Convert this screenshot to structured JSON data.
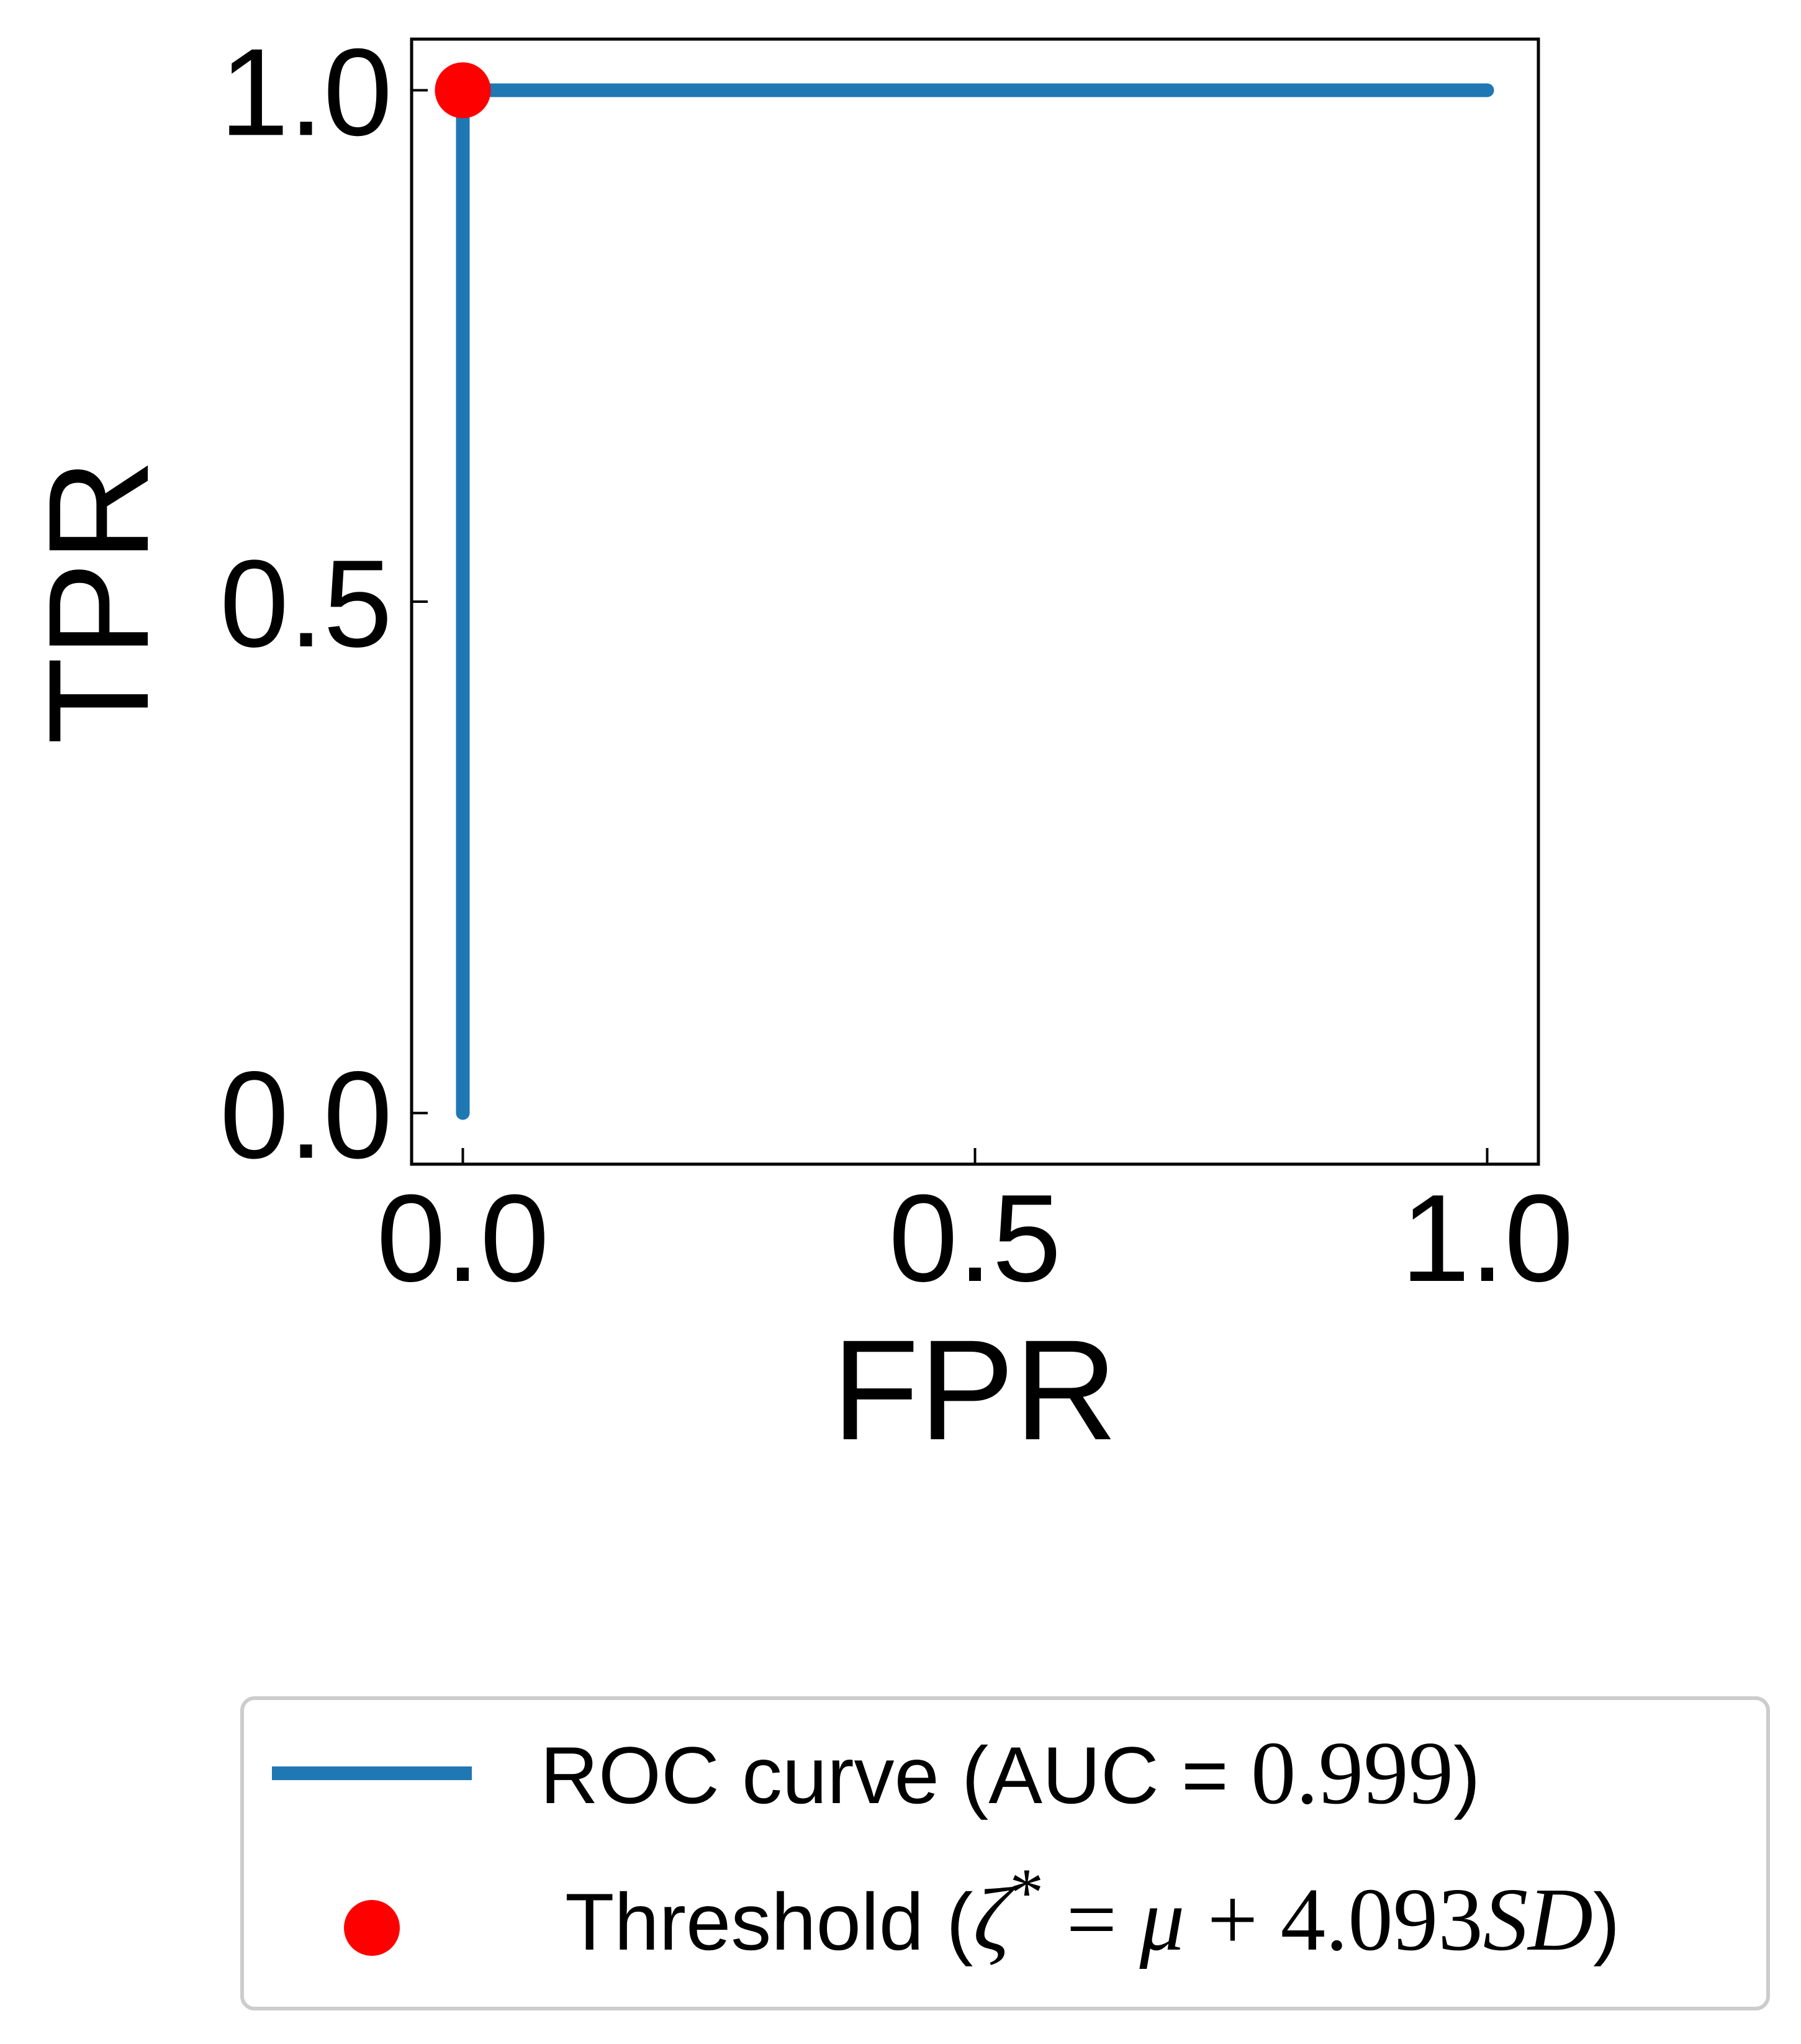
{
  "chart_data": {
    "type": "line",
    "xlabel": "FPR",
    "ylabel": "TPR",
    "xlim": [
      -0.05,
      1.05
    ],
    "ylim": [
      -0.05,
      1.05
    ],
    "xticks": [
      "0.0",
      "0.5",
      "1.0"
    ],
    "yticks": [
      "0.0",
      "0.5",
      "1.0"
    ],
    "xtick_values": [
      0.0,
      0.5,
      1.0
    ],
    "ytick_values": [
      0.0,
      0.5,
      1.0
    ],
    "grid": false,
    "legend_position": "bottom",
    "series": [
      {
        "name": "ROC curve (AUC = 0.999)",
        "kind": "line",
        "color": "#1f77b4",
        "x": [
          0.0,
          0.0,
          0.0,
          1.0
        ],
        "y": [
          0.0,
          0.98,
          1.0,
          1.0
        ]
      },
      {
        "name": "Threshold (ζ* = μ + 4.093SD)",
        "kind": "scatter",
        "color": "#ff0000",
        "x": [
          0.0
        ],
        "y": [
          1.0
        ]
      }
    ],
    "legend": {
      "roc": {
        "prefix": "ROC curve (AUC = ",
        "value": "0.999",
        "suffix": ")"
      },
      "threshold": {
        "prefix": "Threshold (",
        "zeta": "ζ",
        "star": "*",
        "eq": " = ",
        "mu": "μ",
        "plus": " + ",
        "num": "4.093",
        "sd": "SD",
        "suffix": ")"
      }
    }
  }
}
